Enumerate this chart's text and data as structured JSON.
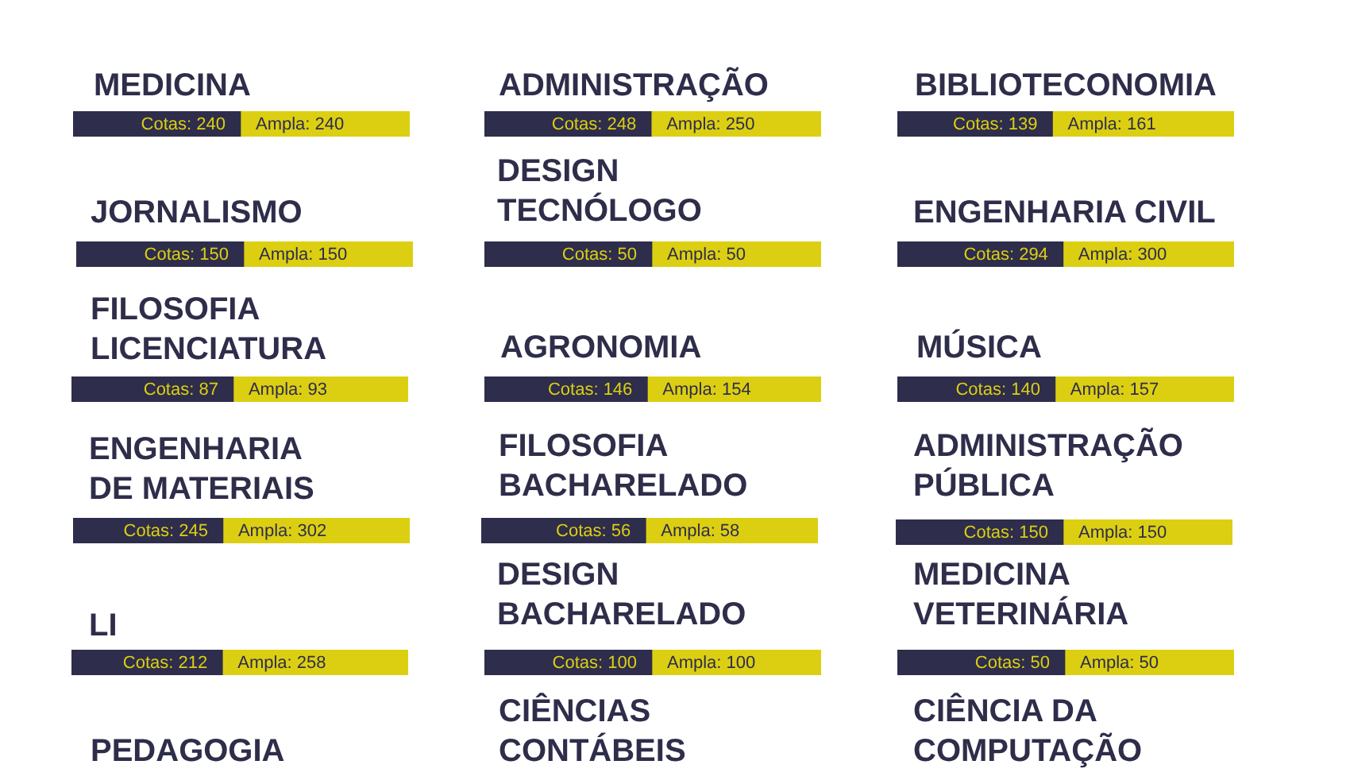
{
  "chart_data": [
    {
      "type": "bar",
      "orientation": "horizontal",
      "stacked": true,
      "title": "MEDICINA",
      "categories": [
        null
      ],
      "xlim": [
        0,
        480
      ],
      "tick_labels": false,
      "series": [
        {
          "color": "#2e2d4b",
          "values": [
            240
          ],
          "value_labels": [
            "Cotas: 240"
          ]
        },
        {
          "color": "#dccf12",
          "values": [
            240
          ],
          "value_labels": [
            "Ampla: 240"
          ]
        }
      ]
    },
    {
      "type": "bar",
      "orientation": "horizontal",
      "stacked": true,
      "title": "ADMINISTRAÇÃO",
      "categories": [
        null
      ],
      "xlim": [
        0,
        498
      ],
      "tick_labels": false,
      "series": [
        {
          "color": "#2e2d4b",
          "values": [
            248
          ],
          "value_labels": [
            "Cotas: 248"
          ]
        },
        {
          "color": "#dccf12",
          "values": [
            250
          ],
          "value_labels": [
            "Ampla: 250"
          ]
        }
      ]
    },
    {
      "type": "bar",
      "orientation": "horizontal",
      "stacked": true,
      "title": "BIBLIOTECONOMIA",
      "categories": [
        null
      ],
      "xlim": [
        0,
        300
      ],
      "tick_labels": false,
      "series": [
        {
          "color": "#2e2d4b",
          "values": [
            139
          ],
          "value_labels": [
            "Cotas: 139"
          ]
        },
        {
          "color": "#dccf12",
          "values": [
            161
          ],
          "value_labels": [
            "Ampla: 161"
          ]
        }
      ]
    },
    {
      "type": "bar",
      "orientation": "horizontal",
      "stacked": true,
      "title": "JORNALISMO",
      "categories": [
        null
      ],
      "xlim": [
        0,
        300
      ],
      "tick_labels": false,
      "series": [
        {
          "color": "#2e2d4b",
          "values": [
            150
          ],
          "value_labels": [
            "Cotas: 150"
          ]
        },
        {
          "color": "#dccf12",
          "values": [
            150
          ],
          "value_labels": [
            "Ampla: 150"
          ]
        }
      ]
    },
    {
      "type": "bar",
      "orientation": "horizontal",
      "stacked": true,
      "title": "DESIGN TECNÓLOGO",
      "categories": [
        null
      ],
      "xlim": [
        0,
        100
      ],
      "tick_labels": false,
      "series": [
        {
          "color": "#2e2d4b",
          "values": [
            50
          ],
          "value_labels": [
            "Cotas: 50"
          ]
        },
        {
          "color": "#dccf12",
          "values": [
            50
          ],
          "value_labels": [
            "Ampla: 50"
          ]
        }
      ]
    },
    {
      "type": "bar",
      "orientation": "horizontal",
      "stacked": true,
      "title": "ENGENHARIA CIVIL",
      "categories": [
        null
      ],
      "xlim": [
        0,
        594
      ],
      "tick_labels": false,
      "series": [
        {
          "color": "#2e2d4b",
          "values": [
            294
          ],
          "value_labels": [
            "Cotas: 294"
          ]
        },
        {
          "color": "#dccf12",
          "values": [
            300
          ],
          "value_labels": [
            "Ampla: 300"
          ]
        }
      ]
    },
    {
      "type": "bar",
      "orientation": "horizontal",
      "stacked": true,
      "title": "FILOSOFIA LICENCIATURA",
      "categories": [
        null
      ],
      "xlim": [
        0,
        180
      ],
      "tick_labels": false,
      "series": [
        {
          "color": "#2e2d4b",
          "values": [
            87
          ],
          "value_labels": [
            "Cotas: 87"
          ]
        },
        {
          "color": "#dccf12",
          "values": [
            93
          ],
          "value_labels": [
            "Ampla: 93"
          ]
        }
      ]
    },
    {
      "type": "bar",
      "orientation": "horizontal",
      "stacked": true,
      "title": "AGRONOMIA",
      "categories": [
        null
      ],
      "xlim": [
        0,
        300
      ],
      "tick_labels": false,
      "series": [
        {
          "color": "#2e2d4b",
          "values": [
            146
          ],
          "value_labels": [
            "Cotas: 146"
          ]
        },
        {
          "color": "#dccf12",
          "values": [
            154
          ],
          "value_labels": [
            "Ampla: 154"
          ]
        }
      ]
    },
    {
      "type": "bar",
      "orientation": "horizontal",
      "stacked": true,
      "title": "MÚSICA",
      "categories": [
        null
      ],
      "xlim": [
        0,
        297
      ],
      "tick_labels": false,
      "series": [
        {
          "color": "#2e2d4b",
          "values": [
            140
          ],
          "value_labels": [
            "Cotas: 140"
          ]
        },
        {
          "color": "#dccf12",
          "values": [
            157
          ],
          "value_labels": [
            "Ampla: 157"
          ]
        }
      ]
    },
    {
      "type": "bar",
      "orientation": "horizontal",
      "stacked": true,
      "title": "ENGENHARIA DE MATERIAIS",
      "categories": [
        null
      ],
      "xlim": [
        0,
        547
      ],
      "tick_labels": false,
      "series": [
        {
          "color": "#2e2d4b",
          "values": [
            245
          ],
          "value_labels": [
            "Cotas: 245"
          ]
        },
        {
          "color": "#dccf12",
          "values": [
            302
          ],
          "value_labels": [
            "Ampla: 302"
          ]
        }
      ]
    },
    {
      "type": "bar",
      "orientation": "horizontal",
      "stacked": true,
      "title": "FILOSOFIA BACHARELADO",
      "categories": [
        null
      ],
      "xlim": [
        0,
        114
      ],
      "tick_labels": false,
      "series": [
        {
          "color": "#2e2d4b",
          "values": [
            56
          ],
          "value_labels": [
            "Cotas: 56"
          ]
        },
        {
          "color": "#dccf12",
          "values": [
            58
          ],
          "value_labels": [
            "Ampla: 58"
          ]
        }
      ]
    },
    {
      "type": "bar",
      "orientation": "horizontal",
      "stacked": true,
      "title": "ADMINISTRAÇÃO PÚBLICA",
      "categories": [
        null
      ],
      "xlim": [
        0,
        300
      ],
      "tick_labels": false,
      "series": [
        {
          "color": "#2e2d4b",
          "values": [
            150
          ],
          "value_labels": [
            "Cotas: 150"
          ]
        },
        {
          "color": "#dccf12",
          "values": [
            150
          ],
          "value_labels": [
            "Ampla: 150"
          ]
        }
      ]
    },
    {
      "type": "bar",
      "orientation": "horizontal",
      "stacked": true,
      "title": "LI",
      "categories": [
        null
      ],
      "xlim": [
        0,
        470
      ],
      "tick_labels": false,
      "series": [
        {
          "color": "#2e2d4b",
          "values": [
            212
          ],
          "value_labels": [
            "Cotas: 212"
          ]
        },
        {
          "color": "#dccf12",
          "values": [
            258
          ],
          "value_labels": [
            "Ampla: 258"
          ]
        }
      ]
    },
    {
      "type": "bar",
      "orientation": "horizontal",
      "stacked": true,
      "title": "DESIGN BACHARELADO",
      "categories": [
        null
      ],
      "xlim": [
        0,
        200
      ],
      "tick_labels": false,
      "series": [
        {
          "color": "#2e2d4b",
          "values": [
            100
          ],
          "value_labels": [
            "Cotas: 100"
          ]
        },
        {
          "color": "#dccf12",
          "values": [
            100
          ],
          "value_labels": [
            "Ampla: 100"
          ]
        }
      ]
    },
    {
      "type": "bar",
      "orientation": "horizontal",
      "stacked": true,
      "title": "MEDICINA VETERINÁRIA",
      "categories": [
        null
      ],
      "xlim": [
        0,
        100
      ],
      "tick_labels": false,
      "series": [
        {
          "color": "#2e2d4b",
          "values": [
            50
          ],
          "value_labels": [
            "Cotas: 50"
          ]
        },
        {
          "color": "#dccf12",
          "values": [
            50
          ],
          "value_labels": [
            "Ampla: 50"
          ]
        }
      ]
    },
    {
      "type": "other",
      "title": "PEDAGOGIA"
    },
    {
      "type": "other",
      "title": "CIÊNCIAS CONTÁBEIS"
    },
    {
      "type": "other",
      "title": "CIÊNCIA DA COMPUTAÇÃO"
    }
  ]
}
